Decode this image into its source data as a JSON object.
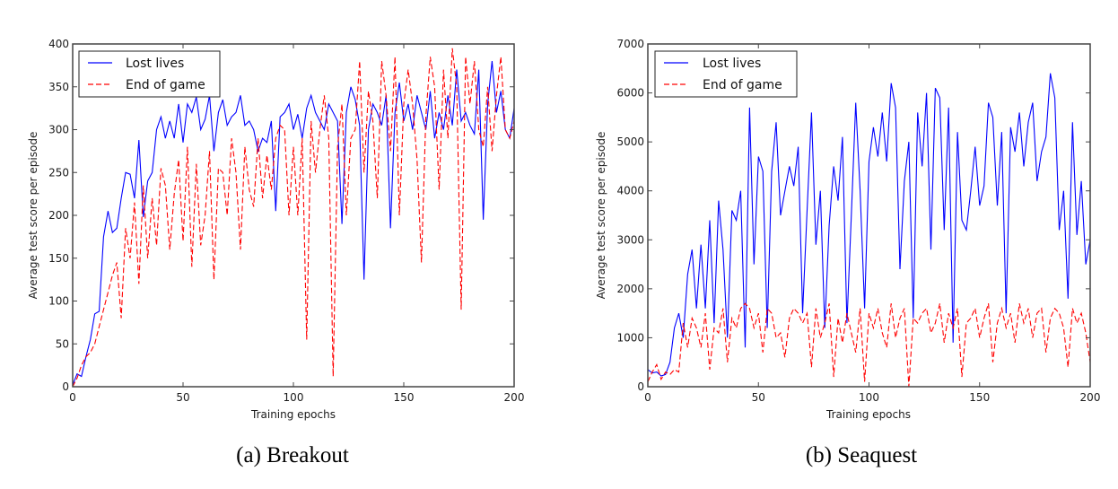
{
  "chart_data": [
    {
      "type": "line",
      "caption": "(a) Breakout",
      "xlabel": "Training epochs",
      "ylabel": "Average test score per episode",
      "xlim": [
        0,
        200
      ],
      "ylim": [
        0,
        400
      ],
      "xticks": [
        0,
        50,
        100,
        150,
        200
      ],
      "yticks": [
        0,
        50,
        100,
        150,
        200,
        250,
        300,
        350,
        400
      ],
      "legend_position": "top-left",
      "grid": false,
      "x_step": 2,
      "series": [
        {
          "name": "Lost lives",
          "color": "#0000ff",
          "dash": "solid",
          "values": [
            2,
            15,
            12,
            35,
            55,
            85,
            88,
            175,
            205,
            180,
            185,
            220,
            250,
            248,
            220,
            288,
            198,
            240,
            250,
            300,
            315,
            290,
            310,
            290,
            330,
            285,
            330,
            320,
            338,
            300,
            312,
            340,
            275,
            320,
            335,
            305,
            315,
            320,
            340,
            305,
            310,
            300,
            275,
            290,
            285,
            310,
            205,
            315,
            320,
            330,
            300,
            318,
            290,
            325,
            340,
            320,
            310,
            300,
            330,
            320,
            310,
            190,
            320,
            350,
            335,
            305,
            125,
            300,
            330,
            320,
            305,
            340,
            185,
            320,
            355,
            310,
            330,
            300,
            340,
            320,
            300,
            345,
            290,
            320,
            300,
            340,
            305,
            370,
            310,
            320,
            305,
            295,
            370,
            195,
            330,
            380,
            320,
            345,
            300,
            290,
            325
          ]
        },
        {
          "name": "End of game",
          "color": "#ff0000",
          "dash": "dashed",
          "values": [
            0,
            10,
            25,
            35,
            40,
            50,
            70,
            90,
            110,
            130,
            145,
            80,
            185,
            150,
            215,
            120,
            235,
            150,
            220,
            165,
            255,
            235,
            160,
            225,
            265,
            170,
            280,
            140,
            260,
            165,
            200,
            275,
            125,
            255,
            250,
            200,
            290,
            250,
            160,
            280,
            230,
            210,
            290,
            220,
            270,
            230,
            290,
            305,
            300,
            200,
            280,
            200,
            290,
            55,
            310,
            250,
            300,
            340,
            290,
            12,
            280,
            330,
            200,
            290,
            300,
            380,
            250,
            345,
            310,
            220,
            380,
            340,
            275,
            385,
            200,
            330,
            370,
            330,
            265,
            145,
            315,
            385,
            350,
            230,
            370,
            290,
            395,
            350,
            90,
            385,
            330,
            380,
            300,
            280,
            350,
            275,
            340,
            385,
            300,
            290,
            310
          ]
        }
      ]
    },
    {
      "type": "line",
      "caption": "(b) Seaquest",
      "xlabel": "Training epochs",
      "ylabel": "Average test score per episode",
      "xlim": [
        0,
        200
      ],
      "ylim": [
        0,
        7000
      ],
      "xticks": [
        0,
        50,
        100,
        150,
        200
      ],
      "yticks": [
        0,
        1000,
        2000,
        3000,
        4000,
        5000,
        6000,
        7000
      ],
      "legend_position": "top-left",
      "grid": false,
      "x_step": 2,
      "series": [
        {
          "name": "Lost lives",
          "color": "#0000ff",
          "dash": "solid",
          "values": [
            350,
            280,
            300,
            220,
            250,
            500,
            1200,
            1500,
            1000,
            2300,
            2800,
            1600,
            2900,
            1600,
            3400,
            1300,
            3800,
            2800,
            1000,
            3600,
            3400,
            4000,
            800,
            5700,
            2500,
            4700,
            4400,
            1200,
            4400,
            5400,
            3500,
            4000,
            4500,
            4100,
            4900,
            1500,
            3600,
            5600,
            2900,
            4000,
            1200,
            3300,
            4500,
            3800,
            5100,
            1300,
            3500,
            5800,
            4000,
            1600,
            4600,
            5300,
            4700,
            5600,
            4600,
            6200,
            5700,
            2400,
            4200,
            5000,
            1400,
            5600,
            4500,
            6000,
            2800,
            6100,
            5900,
            3200,
            5700,
            900,
            5200,
            3400,
            3200,
            4000,
            4900,
            3700,
            4100,
            5800,
            5500,
            3700,
            5200,
            1500,
            5300,
            4800,
            5600,
            4500,
            5400,
            5800,
            4200,
            4800,
            5100,
            6400,
            5900,
            3200,
            4000,
            1800,
            5400,
            3100,
            4200,
            2500,
            3000
          ]
        },
        {
          "name": "End of game",
          "color": "#ff0000",
          "dash": "dashed",
          "values": [
            100,
            300,
            450,
            150,
            300,
            250,
            350,
            300,
            1300,
            800,
            1400,
            1200,
            800,
            1500,
            350,
            1200,
            1100,
            1600,
            500,
            1400,
            1200,
            1600,
            1700,
            1600,
            1200,
            1500,
            700,
            1600,
            1500,
            1000,
            1100,
            600,
            1400,
            1600,
            1500,
            1300,
            1500,
            400,
            1600,
            1000,
            1300,
            1700,
            200,
            1400,
            900,
            1500,
            1100,
            700,
            1600,
            100,
            1500,
            1200,
            1600,
            1100,
            800,
            1700,
            1000,
            1400,
            1600,
            0,
            1400,
            1300,
            1500,
            1600,
            1100,
            1300,
            1700,
            900,
            1500,
            1200,
            1600,
            200,
            1300,
            1400,
            1600,
            1000,
            1400,
            1700,
            500,
            1300,
            1600,
            1200,
            1500,
            900,
            1700,
            1300,
            1600,
            1000,
            1500,
            1600,
            700,
            1400,
            1600,
            1500,
            1200,
            400,
            1600,
            1300,
            1500,
            1100,
            500
          ]
        }
      ]
    }
  ]
}
